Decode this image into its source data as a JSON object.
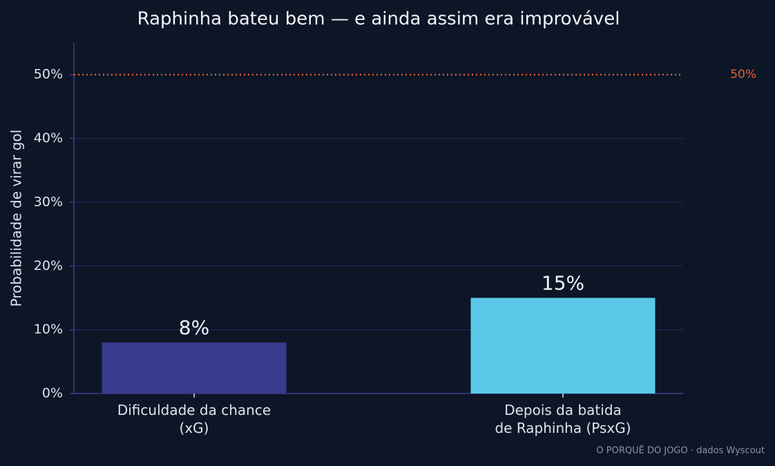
{
  "chart_data": {
    "type": "bar",
    "title": "Raphinha bateu bem — e ainda assim era improvável",
    "y_label": "Probabilidade de virar gol",
    "categories": [
      "Dificuldade da chance\n(xG)",
      "Depois da batida\nde Raphinha (PsxG)"
    ],
    "values": [
      8,
      15
    ],
    "value_labels": [
      "8%",
      "15%"
    ],
    "colors": [
      "#393a8b",
      "#5ac8e6"
    ],
    "ylim": [
      0,
      55
    ],
    "yticks": [
      {
        "value": 0,
        "label": "0%"
      },
      {
        "value": 10,
        "label": "10%"
      },
      {
        "value": 20,
        "label": "20%"
      },
      {
        "value": 30,
        "label": "30%"
      },
      {
        "value": 40,
        "label": "40%"
      },
      {
        "value": 50,
        "label": "50%"
      }
    ],
    "grid": true,
    "reference_line": {
      "value": 50,
      "label": "50%",
      "color": "#e2603a"
    },
    "source": "O PORQUÊ DO JOGO · dados Wyscout"
  }
}
